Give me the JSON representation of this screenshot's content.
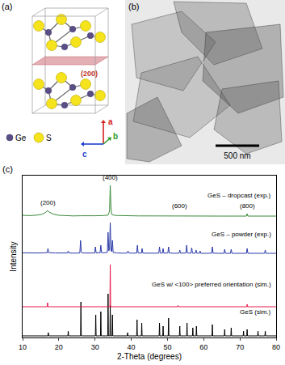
{
  "panels": {
    "a": {
      "label": "(a)",
      "plane_label": "(200)",
      "legend": [
        {
          "label": "Ge",
          "color": "#5b4e86"
        },
        {
          "label": "S",
          "color": "#f5e31c"
        }
      ],
      "axes": [
        {
          "label": "a",
          "color": "#d62020"
        },
        {
          "label": "b",
          "color": "#2a9a2a"
        },
        {
          "label": "c",
          "color": "#2040d0"
        }
      ]
    },
    "b": {
      "label": "(b)",
      "scale_bar": "500 nm"
    }
  },
  "chart_data": {
    "type": "line",
    "panel_label": "(c)",
    "x_label": "2-Theta (degrees)",
    "y_label": "Intensity",
    "xlim": [
      10,
      80
    ],
    "xticks": [
      10,
      20,
      30,
      40,
      50,
      60,
      70,
      80
    ],
    "ylim": [
      0,
      100
    ],
    "tick_labels": "x",
    "grid": false,
    "series": [
      {
        "name": "GeS (sim.)",
        "color": "#000000",
        "label_at": [
          79,
          16
        ],
        "x": [
          10,
          17.0,
          17.1,
          17.2,
          22.5,
          22.6,
          22.7,
          26.0,
          26.1,
          26.2,
          30.1,
          30.2,
          30.3,
          31.5,
          31.6,
          31.7,
          33.5,
          33.6,
          33.7,
          34.1,
          34.2,
          34.3,
          34.7,
          34.8,
          34.9,
          38.9,
          39.0,
          39.1,
          41.5,
          41.6,
          41.7,
          42.8,
          42.9,
          43.0,
          47.7,
          47.8,
          47.9,
          48.7,
          48.8,
          48.9,
          50.2,
          50.3,
          50.4,
          53.3,
          53.4,
          53.5,
          55.3,
          55.4,
          55.5,
          56.9,
          57.0,
          57.1,
          57.9,
          58.0,
          58.1,
          62.3,
          62.4,
          62.5,
          65.7,
          65.8,
          65.9,
          67.5,
          67.6,
          67.7,
          70.9,
          71.0,
          71.1,
          71.9,
          72.0,
          72.1,
          74.9,
          75.0,
          75.1,
          76.9,
          77.0,
          77.1,
          80
        ],
        "values": [
          1,
          1,
          3,
          1,
          1,
          4,
          1,
          1,
          22,
          1,
          1,
          14,
          1,
          1,
          16,
          1,
          1,
          27,
          1,
          1,
          20,
          1,
          1,
          14,
          1,
          1,
          3,
          1,
          1,
          11,
          1,
          1,
          9,
          1,
          1,
          9,
          1,
          1,
          7,
          1,
          1,
          12,
          1,
          1,
          7,
          1,
          1,
          9,
          1,
          1,
          6,
          1,
          1,
          7,
          1,
          1,
          8,
          1,
          1,
          5,
          1,
          1,
          6,
          1,
          1,
          4,
          1,
          1,
          5,
          1,
          1,
          4,
          1,
          1,
          4,
          1,
          1
        ]
      },
      {
        "name": "GeS w/ <100> preferred orientation (sim.)",
        "color": "#e8174a",
        "label_at": [
          79,
          33
        ],
        "x": [
          10,
          16.8,
          16.9,
          17.0,
          34.1,
          34.2,
          34.3,
          52.8,
          52.9,
          53.0,
          71.9,
          72.0,
          72.1,
          80
        ],
        "values": [
          19,
          19,
          21.5,
          19,
          19,
          45,
          19,
          19,
          19.8,
          19,
          19,
          20.5,
          19,
          19
        ]
      },
      {
        "name": "GeS – powder (exp.)",
        "color": "#2a3aa8",
        "label_at": [
          79,
          64
        ],
        "x": [
          10,
          12,
          14,
          16,
          16.8,
          17.0,
          17.2,
          19,
          21,
          22.4,
          22.6,
          22.8,
          24,
          25.8,
          26.0,
          26.2,
          26.4,
          28,
          29.9,
          30.1,
          30.3,
          31.4,
          31.6,
          31.8,
          32.5,
          33.4,
          33.6,
          33.8,
          34.0,
          34.2,
          34.4,
          34.6,
          34.8,
          35.0,
          36,
          38,
          38.9,
          39.1,
          39.3,
          40.5,
          41.5,
          41.7,
          41.9,
          42.8,
          43.0,
          43.2,
          45,
          47.6,
          47.8,
          48.0,
          48.6,
          48.8,
          49.0,
          50.1,
          50.3,
          50.5,
          52,
          53.2,
          53.4,
          53.6,
          55.1,
          55.3,
          55.5,
          56.5,
          56.7,
          56.9,
          57.7,
          57.9,
          58.1,
          58.8,
          59.0,
          59.2,
          61,
          62.2,
          62.4,
          62.6,
          64,
          65.6,
          65.8,
          66.0,
          67.4,
          67.6,
          67.8,
          69,
          71.8,
          72.0,
          72.2,
          74,
          76.8,
          77.0,
          77.2,
          80
        ],
        "values": [
          52.3,
          52.1,
          52.2,
          52.3,
          52.4,
          55,
          52.4,
          52.2,
          52.1,
          52.2,
          53.5,
          52.2,
          52.1,
          52.2,
          60,
          53,
          52.2,
          52.1,
          52.2,
          56,
          52.3,
          52.3,
          57,
          52.4,
          52.3,
          52.6,
          65,
          53.5,
          55,
          71,
          54,
          53,
          60,
          52.6,
          52.2,
          52.1,
          52.2,
          53.5,
          52.2,
          52.1,
          52.2,
          57,
          52.2,
          52.1,
          55,
          52.1,
          52,
          52.1,
          56,
          52.2,
          52.1,
          55,
          52.1,
          52.2,
          56,
          52.2,
          52,
          52.1,
          54,
          52.1,
          52.2,
          57,
          52.2,
          52.1,
          55.5,
          52.1,
          52.1,
          54,
          52.1,
          52,
          53.5,
          52,
          52,
          52.1,
          56,
          52.1,
          52,
          52,
          54.5,
          52,
          52,
          54.5,
          52,
          52,
          52,
          55,
          52,
          52,
          52,
          54,
          52,
          52
        ]
      },
      {
        "name": "GeS – dropcast (exp.)",
        "color": "#3a8a3a",
        "label_at": [
          79,
          88
        ],
        "x": [
          10,
          12,
          14,
          15.5,
          16.5,
          16.9,
          17.3,
          18.5,
          20,
          22,
          24,
          26,
          28,
          30,
          32,
          33.6,
          34.0,
          34.2,
          34.4,
          34.6,
          35.5,
          38,
          42,
          46,
          50,
          53.5,
          56,
          60,
          64,
          68,
          71.8,
          72.0,
          72.2,
          76,
          80
        ],
        "values": [
          75.5,
          75.3,
          75.6,
          76.2,
          77.5,
          78.5,
          77.5,
          76.2,
          75.5,
          75.2,
          75.1,
          75.2,
          75.1,
          75.2,
          75.3,
          75.6,
          78,
          94,
          80,
          76,
          75.4,
          75.2,
          75.1,
          75.1,
          75,
          75.2,
          75,
          75,
          75,
          75,
          75,
          76.5,
          75,
          75,
          75
        ]
      }
    ],
    "annotations": [
      {
        "text": "(200)",
        "x": 17.0,
        "y": 80
      },
      {
        "text": "(400)",
        "x": 34.2,
        "y": 95.5
      },
      {
        "text": "(600)",
        "x": 53.3,
        "y": 78
      },
      {
        "text": "(800)",
        "x": 72.0,
        "y": 78
      }
    ]
  }
}
